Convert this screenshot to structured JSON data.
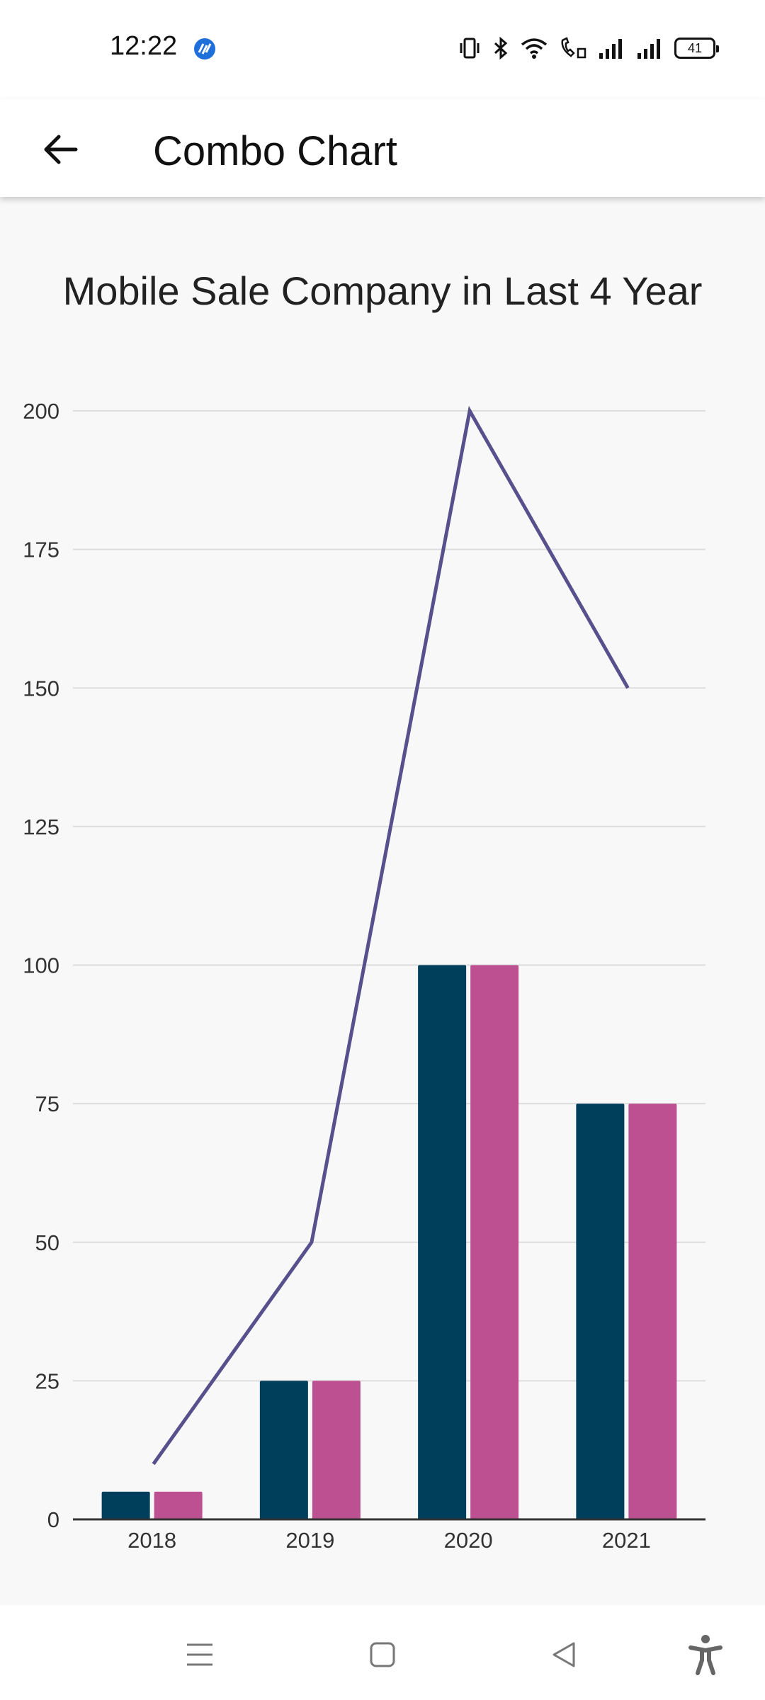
{
  "status_bar": {
    "time": "12:22",
    "battery": "41",
    "icons": [
      "vibrate-icon",
      "bluetooth-icon",
      "wifi-icon",
      "wifi-calling-icon",
      "signal-icon",
      "signal-icon",
      "battery-icon"
    ]
  },
  "app_bar": {
    "title": "Combo Chart"
  },
  "chart_data": {
    "type": "bar",
    "title": "Mobile Sale Company in Last 4 Year",
    "categories": [
      "2018",
      "2019",
      "2020",
      "2021"
    ],
    "series": [
      {
        "type": "bar",
        "values": [
          5,
          25,
          100,
          75
        ],
        "color": "#003f5c"
      },
      {
        "type": "bar",
        "values": [
          5,
          25,
          100,
          75
        ],
        "color": "#bc5090"
      },
      {
        "type": "line",
        "values": [
          10,
          50,
          200,
          150
        ],
        "color": "#58508d"
      }
    ],
    "yticks": [
      "0",
      "25",
      "50",
      "75",
      "100",
      "125",
      "150",
      "175",
      "200"
    ],
    "ylim": [
      0,
      200
    ],
    "grid": true,
    "xlabel": "",
    "ylabel": ""
  },
  "colors": {
    "grid": "#dddddd",
    "axis": "#333333",
    "background": "#f8f8f8"
  },
  "nav_bar": {
    "icons": [
      "menu-icon",
      "home-icon",
      "back-icon",
      "accessibility-icon"
    ]
  }
}
